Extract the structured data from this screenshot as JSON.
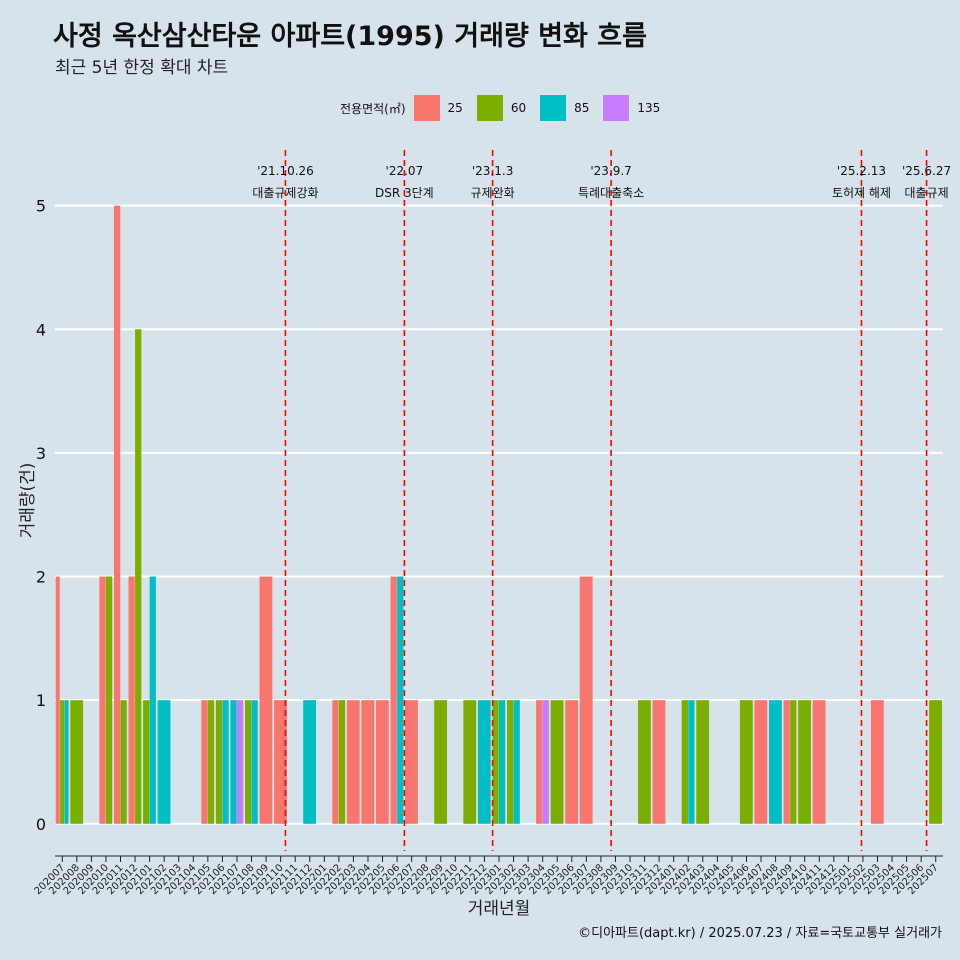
{
  "title": "사정 옥산삼산타운 아파트(1995) 거래량 변화 흐름",
  "subtitle": "최근 5년 한정 확대 차트",
  "caption": "©디아파트(dapt.kr) / 2025.07.23 / 자료=국토교통부 실거래가",
  "legend_title": "전용면적(㎡)",
  "colors": {
    "25": "#f8766d",
    "60": "#7cae00",
    "85": "#00bfc4",
    "135": "#c77cff",
    "background": "#d6e3ea",
    "annotation_line": "#ff0000"
  },
  "chart_data": {
    "type": "bar",
    "xlabel": "거래년월",
    "ylabel": "거래량(건)",
    "ylim": [
      -0.22,
      5.45
    ],
    "yticks": [
      0,
      1,
      2,
      3,
      4,
      5
    ],
    "categories": [
      "202007",
      "202008",
      "202009",
      "202010",
      "202011",
      "202012",
      "202101",
      "202102",
      "202103",
      "202104",
      "202105",
      "202106",
      "202107",
      "202108",
      "202109",
      "202110",
      "202111",
      "202112",
      "202201",
      "202202",
      "202203",
      "202204",
      "202205",
      "202206",
      "202207",
      "202208",
      "202209",
      "202210",
      "202211",
      "202212",
      "202301",
      "202302",
      "202303",
      "202304",
      "202305",
      "202306",
      "202307",
      "202308",
      "202309",
      "202310",
      "202311",
      "202312",
      "202401",
      "202402",
      "202403",
      "202404",
      "202405",
      "202406",
      "202407",
      "202408",
      "202409",
      "202410",
      "202411",
      "202412",
      "202501",
      "202502",
      "202503",
      "202504",
      "202505",
      "202506",
      "202507"
    ],
    "series": [
      {
        "name": "25",
        "values": {
          "202007": 2,
          "202010": 2,
          "202011": 5,
          "202012": 2,
          "202105": 1,
          "202109": 2,
          "202110": 1,
          "202202": 1,
          "202203": 1,
          "202204": 1,
          "202205": 1,
          "202206": 2,
          "202207": 1,
          "202304": 1,
          "202306": 1,
          "202307": 2,
          "202312": 1,
          "202407": 1,
          "202409": 1,
          "202411": 1,
          "202503": 1
        }
      },
      {
        "name": "60",
        "values": {
          "202007": 1,
          "202008": 1,
          "202010": 2,
          "202011": 1,
          "202012": 4,
          "202101": 1,
          "202105": 1,
          "202106": 1,
          "202108": 1,
          "202202": 1,
          "202209": 1,
          "202211": 1,
          "202301": 1,
          "202302": 1,
          "202305": 1,
          "202311": 1,
          "202402": 1,
          "202403": 1,
          "202406": 1,
          "202409": 1,
          "202410": 1,
          "202507": 1
        }
      },
      {
        "name": "85",
        "values": {
          "202007": 1,
          "202101": 2,
          "202102": 1,
          "202106": 1,
          "202107": 1,
          "202108": 1,
          "202112": 1,
          "202206": 2,
          "202212": 1,
          "202301": 1,
          "202302": 1,
          "202402": 1,
          "202408": 1
        }
      },
      {
        "name": "135",
        "values": {
          "202107": 1,
          "202304": 1
        }
      }
    ],
    "annotations": [
      {
        "date": "'21.10.26",
        "text": "대출규제강화",
        "at": "202110",
        "offset": 0.83
      },
      {
        "date": "'22.07",
        "text": "DSR 3단계",
        "at": "202207",
        "offset": 0.0
      },
      {
        "date": "'23.1.3",
        "text": "규제완화",
        "at": "202301",
        "offset": 0.06
      },
      {
        "date": "'23.9.7",
        "text": "특례대출축소",
        "at": "202309",
        "offset": 0.2
      },
      {
        "date": "'25.2.13",
        "text": "토허제 해제",
        "at": "202502",
        "offset": 0.4
      },
      {
        "date": "'25.6.27",
        "text": "대출규제",
        "at": "202506",
        "offset": 0.87
      }
    ]
  }
}
